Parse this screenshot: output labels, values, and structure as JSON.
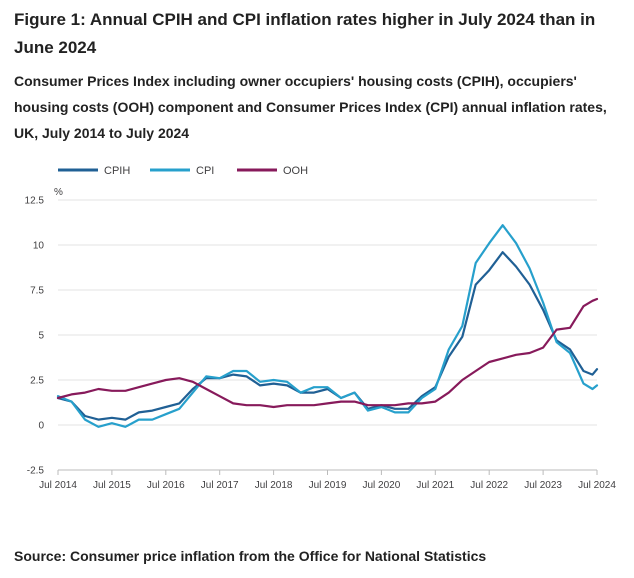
{
  "figure": {
    "title": "Figure 1: Annual CPIH and CPI inflation rates higher in July 2024 than in June 2024",
    "subtitle": "Consumer Prices Index including owner occupiers' housing costs (CPIH), occupiers' housing costs (OOH) component and Consumer Prices Index (CPI) annual inflation rates, UK, July 2014 to July 2024",
    "source": "Source: Consumer price inflation from the Office for National Statistics"
  },
  "chart_data": {
    "type": "line",
    "ylabel": "%",
    "ylim": [
      -2.5,
      12.5
    ],
    "yticks": [
      "12.5",
      "10",
      "7.5",
      "5",
      "2.5",
      "0",
      "-2.5"
    ],
    "x_tick_labels": [
      "Jul 2014",
      "Jul 2015",
      "Jul 2016",
      "Jul 2017",
      "Jul 2018",
      "Jul 2019",
      "Jul 2020",
      "Jul 2021",
      "Jul 2022",
      "Jul 2023",
      "Jul 2024"
    ],
    "x_start": "2014-07",
    "x_end": "2024-07",
    "grid": "horizontal",
    "legend_position": "top-left",
    "series": [
      {
        "name": "CPIH",
        "color": "#206095",
        "points": [
          [
            "2014-07",
            1.5
          ],
          [
            "2014-10",
            1.3
          ],
          [
            "2015-01",
            0.5
          ],
          [
            "2015-04",
            0.3
          ],
          [
            "2015-07",
            0.4
          ],
          [
            "2015-10",
            0.3
          ],
          [
            "2016-01",
            0.7
          ],
          [
            "2016-04",
            0.8
          ],
          [
            "2016-07",
            1.0
          ],
          [
            "2016-10",
            1.2
          ],
          [
            "2017-01",
            2.0
          ],
          [
            "2017-04",
            2.6
          ],
          [
            "2017-07",
            2.6
          ],
          [
            "2017-10",
            2.8
          ],
          [
            "2018-01",
            2.7
          ],
          [
            "2018-04",
            2.2
          ],
          [
            "2018-07",
            2.3
          ],
          [
            "2018-10",
            2.2
          ],
          [
            "2019-01",
            1.8
          ],
          [
            "2019-04",
            1.8
          ],
          [
            "2019-07",
            2.0
          ],
          [
            "2019-10",
            1.5
          ],
          [
            "2020-01",
            1.8
          ],
          [
            "2020-04",
            0.9
          ],
          [
            "2020-07",
            1.1
          ],
          [
            "2020-10",
            0.9
          ],
          [
            "2021-01",
            0.9
          ],
          [
            "2021-04",
            1.6
          ],
          [
            "2021-07",
            2.1
          ],
          [
            "2021-10",
            3.8
          ],
          [
            "2022-01",
            4.9
          ],
          [
            "2022-04",
            7.8
          ],
          [
            "2022-07",
            8.6
          ],
          [
            "2022-10",
            9.6
          ],
          [
            "2023-01",
            8.8
          ],
          [
            "2023-04",
            7.8
          ],
          [
            "2023-07",
            6.4
          ],
          [
            "2023-10",
            4.7
          ],
          [
            "2024-01",
            4.2
          ],
          [
            "2024-04",
            3.0
          ],
          [
            "2024-06",
            2.8
          ],
          [
            "2024-07",
            3.1
          ]
        ]
      },
      {
        "name": "CPI",
        "color": "#27a0cc",
        "points": [
          [
            "2014-07",
            1.6
          ],
          [
            "2014-10",
            1.3
          ],
          [
            "2015-01",
            0.3
          ],
          [
            "2015-04",
            -0.1
          ],
          [
            "2015-07",
            0.1
          ],
          [
            "2015-10",
            -0.1
          ],
          [
            "2016-01",
            0.3
          ],
          [
            "2016-04",
            0.3
          ],
          [
            "2016-07",
            0.6
          ],
          [
            "2016-10",
            0.9
          ],
          [
            "2017-01",
            1.8
          ],
          [
            "2017-04",
            2.7
          ],
          [
            "2017-07",
            2.6
          ],
          [
            "2017-10",
            3.0
          ],
          [
            "2018-01",
            3.0
          ],
          [
            "2018-04",
            2.4
          ],
          [
            "2018-07",
            2.5
          ],
          [
            "2018-10",
            2.4
          ],
          [
            "2019-01",
            1.8
          ],
          [
            "2019-04",
            2.1
          ],
          [
            "2019-07",
            2.1
          ],
          [
            "2019-10",
            1.5
          ],
          [
            "2020-01",
            1.8
          ],
          [
            "2020-04",
            0.8
          ],
          [
            "2020-07",
            1.0
          ],
          [
            "2020-10",
            0.7
          ],
          [
            "2021-01",
            0.7
          ],
          [
            "2021-04",
            1.5
          ],
          [
            "2021-07",
            2.0
          ],
          [
            "2021-10",
            4.2
          ],
          [
            "2022-01",
            5.5
          ],
          [
            "2022-04",
            9.0
          ],
          [
            "2022-07",
            10.1
          ],
          [
            "2022-10",
            11.1
          ],
          [
            "2023-01",
            10.1
          ],
          [
            "2023-04",
            8.7
          ],
          [
            "2023-07",
            6.8
          ],
          [
            "2023-10",
            4.6
          ],
          [
            "2024-01",
            4.0
          ],
          [
            "2024-04",
            2.3
          ],
          [
            "2024-06",
            2.0
          ],
          [
            "2024-07",
            2.2
          ]
        ]
      },
      {
        "name": "OOH",
        "color": "#871a5b",
        "points": [
          [
            "2014-07",
            1.5
          ],
          [
            "2014-10",
            1.7
          ],
          [
            "2015-01",
            1.8
          ],
          [
            "2015-04",
            2.0
          ],
          [
            "2015-07",
            1.9
          ],
          [
            "2015-10",
            1.9
          ],
          [
            "2016-01",
            2.1
          ],
          [
            "2016-04",
            2.3
          ],
          [
            "2016-07",
            2.5
          ],
          [
            "2016-10",
            2.6
          ],
          [
            "2017-01",
            2.4
          ],
          [
            "2017-04",
            2.0
          ],
          [
            "2017-07",
            1.6
          ],
          [
            "2017-10",
            1.2
          ],
          [
            "2018-01",
            1.1
          ],
          [
            "2018-04",
            1.1
          ],
          [
            "2018-07",
            1.0
          ],
          [
            "2018-10",
            1.1
          ],
          [
            "2019-01",
            1.1
          ],
          [
            "2019-04",
            1.1
          ],
          [
            "2019-07",
            1.2
          ],
          [
            "2019-10",
            1.3
          ],
          [
            "2020-01",
            1.3
          ],
          [
            "2020-04",
            1.1
          ],
          [
            "2020-07",
            1.1
          ],
          [
            "2020-10",
            1.1
          ],
          [
            "2021-01",
            1.2
          ],
          [
            "2021-04",
            1.2
          ],
          [
            "2021-07",
            1.3
          ],
          [
            "2021-10",
            1.8
          ],
          [
            "2022-01",
            2.5
          ],
          [
            "2022-04",
            3.0
          ],
          [
            "2022-07",
            3.5
          ],
          [
            "2022-10",
            3.7
          ],
          [
            "2023-01",
            3.9
          ],
          [
            "2023-04",
            4.0
          ],
          [
            "2023-07",
            4.3
          ],
          [
            "2023-10",
            5.3
          ],
          [
            "2024-01",
            5.4
          ],
          [
            "2024-04",
            6.6
          ],
          [
            "2024-06",
            6.9
          ],
          [
            "2024-07",
            7.0
          ]
        ]
      }
    ]
  }
}
